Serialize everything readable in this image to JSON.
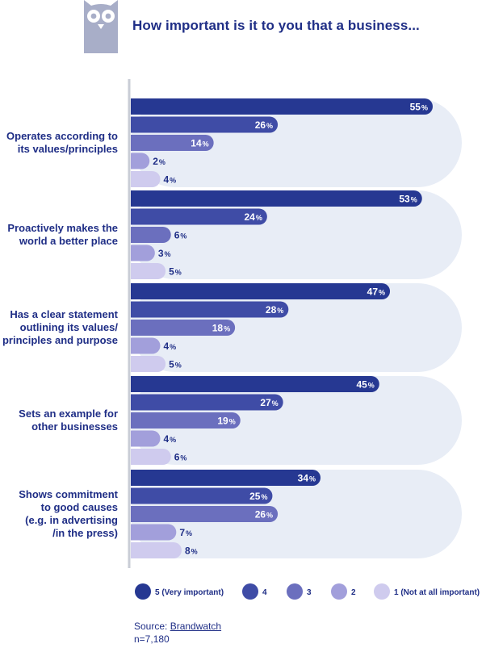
{
  "header": {
    "title": "How important is it to you that a business..."
  },
  "colors": {
    "background_band": "#e8edf6",
    "axis": "#c9cdd6",
    "text": "#1f2e86",
    "series": [
      "#263892",
      "#3f4ca6",
      "#6b6fbe",
      "#a29fdb",
      "#cfcbee"
    ],
    "label_light": "#ffffff",
    "label_dark": "#1f2e86"
  },
  "chart_data": {
    "type": "bar",
    "orientation": "horizontal",
    "title": "How important is it to you that a business...",
    "xlim": [
      0,
      55
    ],
    "value_suffix": "%",
    "categories": [
      "Operates according to its values/principles",
      "Proactively makes the world a better place",
      "Has a clear statement outlining its values/ principles and purpose",
      "Sets an example for other businesses",
      "Shows commitment to good causes (e.g. in advertising /in the press)"
    ],
    "category_lines": [
      [
        "Operates according to",
        "its values/principles"
      ],
      [
        "Proactively makes the",
        "world a better place"
      ],
      [
        "Has a clear statement",
        "outlining its values/",
        "principles and purpose"
      ],
      [
        "Sets an example for",
        "other businesses"
      ],
      [
        "Shows commitment",
        "to good causes",
        "(e.g. in advertising",
        "/in the press)"
      ]
    ],
    "series": [
      {
        "name": "5 (Very important)",
        "values": [
          55,
          53,
          47,
          45,
          34
        ]
      },
      {
        "name": "4",
        "values": [
          26,
          24,
          28,
          27,
          25
        ]
      },
      {
        "name": "3",
        "values": [
          14,
          6,
          18,
          19,
          26
        ]
      },
      {
        "name": "2",
        "values": [
          2,
          3,
          4,
          4,
          7
        ]
      },
      {
        "name": "1 (Not at all important)",
        "values": [
          4,
          5,
          5,
          6,
          8
        ]
      }
    ],
    "legend_position": "bottom"
  },
  "footer": {
    "source_prefix": "Source: ",
    "source_link": "Brandwatch",
    "sample": "n=7,180"
  }
}
